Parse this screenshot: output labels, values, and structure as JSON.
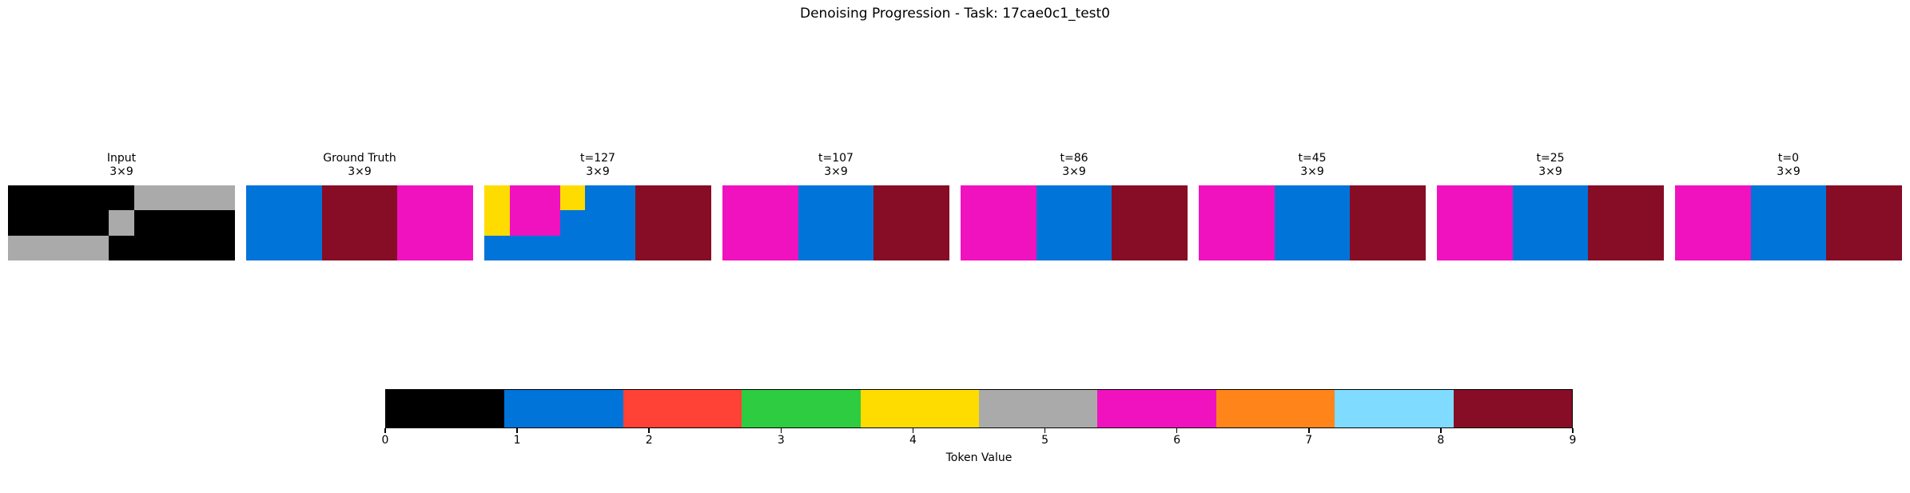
{
  "title": "Denoising Progression - Task: 17cae0c1_test0",
  "chart_data": {
    "type": "heatmap",
    "title": "Denoising Progression - Task: 17cae0c1_test0",
    "grid_shape": {
      "rows": 3,
      "cols": 9
    },
    "palette": [
      "#000000",
      "#0074D9",
      "#FF4136",
      "#2ECC40",
      "#FFDC00",
      "#AAAAAA",
      "#F012BE",
      "#FF851B",
      "#7FDBFF",
      "#870C25"
    ],
    "panels": [
      {
        "label": "Input",
        "size": "3×9",
        "grid": [
          [
            0,
            0,
            0,
            0,
            0,
            5,
            5,
            5,
            5
          ],
          [
            0,
            0,
            0,
            0,
            5,
            0,
            0,
            0,
            0
          ],
          [
            5,
            5,
            5,
            5,
            0,
            0,
            0,
            0,
            0
          ]
        ]
      },
      {
        "label": "Ground Truth",
        "size": "3×9",
        "grid": [
          [
            1,
            1,
            1,
            9,
            9,
            9,
            6,
            6,
            6
          ],
          [
            1,
            1,
            1,
            9,
            9,
            9,
            6,
            6,
            6
          ],
          [
            1,
            1,
            1,
            9,
            9,
            9,
            6,
            6,
            6
          ]
        ]
      },
      {
        "label": "t=127",
        "size": "3×9",
        "grid": [
          [
            4,
            6,
            6,
            4,
            1,
            1,
            9,
            9,
            9
          ],
          [
            4,
            6,
            6,
            1,
            1,
            1,
            9,
            9,
            9
          ],
          [
            1,
            1,
            1,
            1,
            1,
            1,
            9,
            9,
            9
          ]
        ]
      },
      {
        "label": "t=107",
        "size": "3×9",
        "grid": [
          [
            6,
            6,
            6,
            1,
            1,
            1,
            9,
            9,
            9
          ],
          [
            6,
            6,
            6,
            1,
            1,
            1,
            9,
            9,
            9
          ],
          [
            6,
            6,
            6,
            1,
            1,
            1,
            9,
            9,
            9
          ]
        ]
      },
      {
        "label": "t=86",
        "size": "3×9",
        "grid": [
          [
            6,
            6,
            6,
            1,
            1,
            1,
            9,
            9,
            9
          ],
          [
            6,
            6,
            6,
            1,
            1,
            1,
            9,
            9,
            9
          ],
          [
            6,
            6,
            6,
            1,
            1,
            1,
            9,
            9,
            9
          ]
        ]
      },
      {
        "label": "t=45",
        "size": "3×9",
        "grid": [
          [
            6,
            6,
            6,
            1,
            1,
            1,
            9,
            9,
            9
          ],
          [
            6,
            6,
            6,
            1,
            1,
            1,
            9,
            9,
            9
          ],
          [
            6,
            6,
            6,
            1,
            1,
            1,
            9,
            9,
            9
          ]
        ]
      },
      {
        "label": "t=25",
        "size": "3×9",
        "grid": [
          [
            6,
            6,
            6,
            1,
            1,
            1,
            9,
            9,
            9
          ],
          [
            6,
            6,
            6,
            1,
            1,
            1,
            9,
            9,
            9
          ],
          [
            6,
            6,
            6,
            1,
            1,
            1,
            9,
            9,
            9
          ]
        ]
      },
      {
        "label": "t=0",
        "size": "3×9",
        "grid": [
          [
            6,
            6,
            6,
            1,
            1,
            1,
            9,
            9,
            9
          ],
          [
            6,
            6,
            6,
            1,
            1,
            1,
            9,
            9,
            9
          ],
          [
            6,
            6,
            6,
            1,
            1,
            1,
            9,
            9,
            9
          ]
        ]
      }
    ],
    "colorbar": {
      "label": "Token Value",
      "ticks": [
        "0",
        "1",
        "2",
        "3",
        "4",
        "5",
        "6",
        "7",
        "8",
        "9"
      ],
      "colors": [
        "#000000",
        "#0074D9",
        "#FF4136",
        "#2ECC40",
        "#FFDC00",
        "#AAAAAA",
        "#F012BE",
        "#FF851B",
        "#7FDBFF",
        "#870C25"
      ],
      "range": [
        0,
        9
      ]
    }
  }
}
